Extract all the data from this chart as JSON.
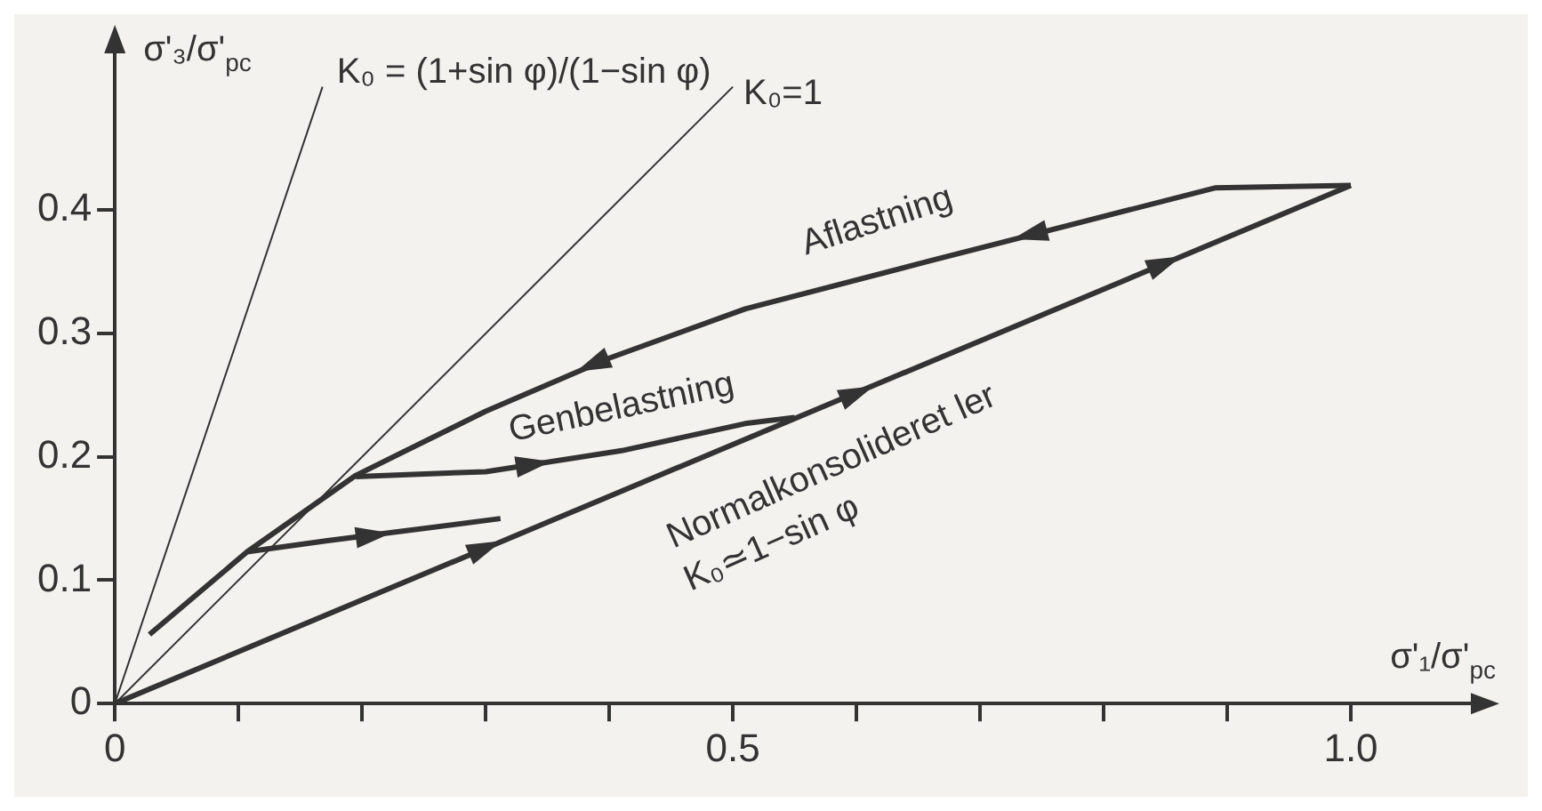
{
  "chart_data": {
    "type": "line",
    "xlabel": "σ'₁/σ'$_{pc}$",
    "ylabel": "σ'₃/σ'$_{pc}$",
    "xlim": [
      0,
      1.1
    ],
    "ylim": [
      0,
      0.53
    ],
    "xticks": [
      0,
      {
        "value": 0.1,
        "label": null
      },
      {
        "value": 0.2,
        "label": null
      },
      {
        "value": 0.3,
        "label": null
      },
      {
        "value": 0.4,
        "label": null
      },
      0.5,
      {
        "value": 0.6,
        "label": null
      },
      {
        "value": 0.7,
        "label": null
      },
      {
        "value": 0.8,
        "label": null
      },
      {
        "value": 0.9,
        "label": null
      },
      {
        "value": 1.0,
        "label": "1.0"
      }
    ],
    "yticks": [
      0,
      0.1,
      0.2,
      0.3,
      0.4
    ],
    "grid": false,
    "legend": false,
    "series": [
      {
        "color": "#333333",
        "x": [
          0,
          0.168
        ],
        "values": [
          0,
          0.5
        ]
      },
      {
        "color": "#333333",
        "x": [
          0,
          0.5
        ],
        "values": [
          0,
          0.5
        ]
      },
      {
        "color": "#333333",
        "x": [
          0,
          1.0
        ],
        "values": [
          0,
          0.42
        ]
      },
      {
        "color": "#333333",
        "x": [
          1.0,
          0.89,
          0.66,
          0.51,
          0.4,
          0.3,
          0.195,
          0.107,
          0.028
        ],
        "values": [
          0.42,
          0.418,
          0.359,
          0.32,
          0.28,
          0.237,
          0.185,
          0.123,
          0.056
        ]
      },
      {
        "color": "#333333",
        "x": [
          0.195,
          0.3,
          0.41,
          0.51,
          0.55
        ],
        "values": [
          0.184,
          0.188,
          0.205,
          0.227,
          0.232
        ]
      },
      {
        "color": "#333333",
        "x": [
          0.107,
          0.172,
          0.312
        ],
        "values": [
          0.123,
          0.132,
          0.15
        ]
      }
    ],
    "annotations": [
      {
        "text": "K₀ = (1+sin φ)/(1−sin φ)",
        "x": 0.168,
        "y": 0.5
      },
      {
        "text": "K₀=1",
        "x": 0.5,
        "y": 0.5
      },
      {
        "text": "Aflastning",
        "x": 0.66,
        "y": 0.359
      },
      {
        "text": "Genbelastning",
        "x": 0.41,
        "y": 0.205
      },
      {
        "text": "Normalkonsolideret ler",
        "x": 0.56,
        "y": 0.235
      },
      {
        "text": "K₀≃1−sin φ",
        "x": 0.5,
        "y": 0.21
      }
    ]
  }
}
